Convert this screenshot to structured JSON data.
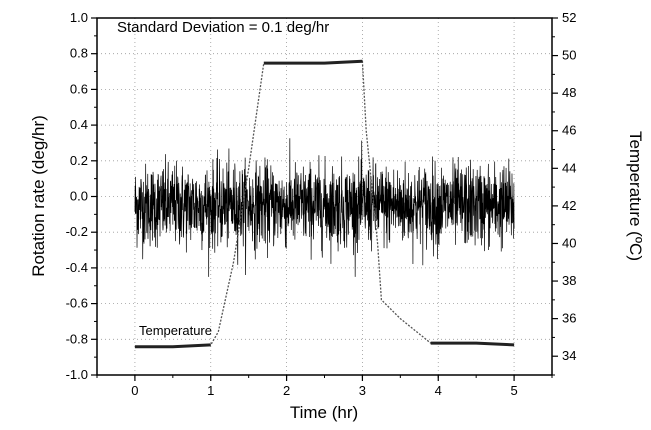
{
  "chart_data": {
    "type": "line",
    "title": "",
    "annotation": "Standard Deviation = 0.1 deg/hr",
    "xlabel": "Time (hr)",
    "ylabel": "Rotation rate (deg/hr)",
    "y2label": "Temperature (ºC)",
    "xlim": [
      -0.5,
      5.5
    ],
    "ylim": [
      -1.0,
      1.0
    ],
    "y2lim": [
      33,
      52
    ],
    "xticks": [
      0,
      1,
      2,
      3,
      4,
      5
    ],
    "yticks": [
      -1.0,
      -0.8,
      -0.6,
      -0.4,
      -0.2,
      0.0,
      0.2,
      0.4,
      0.6,
      0.8,
      1.0
    ],
    "y2ticks": [
      34,
      36,
      38,
      40,
      42,
      44,
      46,
      48,
      50,
      52
    ],
    "grid": true,
    "series": [
      {
        "name": "Temperature",
        "axis": "right",
        "x": [
          0,
          0.5,
          1.0,
          1.1,
          1.3,
          1.5,
          1.7,
          2.0,
          2.5,
          3.0,
          3.05,
          3.2,
          3.25,
          3.5,
          3.9,
          4.5,
          5.0
        ],
        "y": [
          34.5,
          34.5,
          34.6,
          35.3,
          39.0,
          44.0,
          49.6,
          49.6,
          49.6,
          49.7,
          46.0,
          40.0,
          37.0,
          36.0,
          34.7,
          34.7,
          34.6
        ]
      },
      {
        "name": "Rotation rate",
        "axis": "left",
        "style": "noise",
        "x_range": [
          0,
          5
        ],
        "mean": -0.05,
        "std": 0.1,
        "color": "#000000"
      }
    ]
  }
}
